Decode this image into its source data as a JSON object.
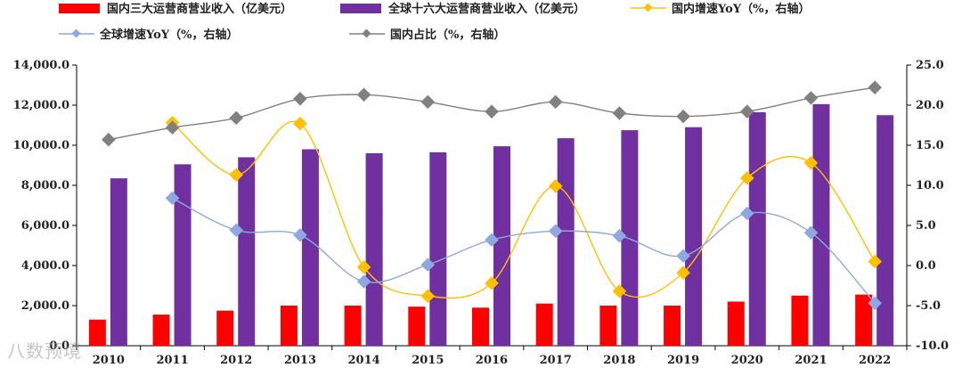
{
  "chart_data": {
    "type": "bar+line",
    "categories": [
      "2010",
      "2011",
      "2012",
      "2013",
      "2014",
      "2015",
      "2016",
      "2017",
      "2018",
      "2019",
      "2020",
      "2021",
      "2022"
    ],
    "bar_series": [
      {
        "name": "国内三大运营商营业收入（亿美元）",
        "color": "#ff0000",
        "values": [
          1300,
          1550,
          1750,
          2000,
          2000,
          1950,
          1900,
          2100,
          2000,
          2000,
          2200,
          2500,
          2550
        ]
      },
      {
        "name": "全球十六大运营商营业收入（亿美元）",
        "color": "#7030a0",
        "values": [
          8350,
          9050,
          9400,
          9800,
          9600,
          9650,
          9950,
          10350,
          10750,
          10900,
          11650,
          12050,
          11500
        ]
      }
    ],
    "line_series": [
      {
        "name": "国内增速YoY（%，右轴）",
        "color": "#ffc000",
        "values": [
          null,
          17.8,
          11.3,
          17.7,
          -0.2,
          -3.8,
          -2.2,
          9.9,
          -3.2,
          -0.9,
          10.9,
          12.8,
          0.5
        ]
      },
      {
        "name": "全球增速YoY（%，右轴）",
        "color": "#8fa8e0",
        "values": [
          null,
          8.4,
          4.4,
          3.8,
          -2.0,
          0.1,
          3.2,
          4.3,
          3.7,
          1.2,
          6.5,
          4.1,
          -4.7
        ]
      },
      {
        "name": "国内占比（%，右轴）",
        "color": "#808080",
        "values": [
          15.7,
          17.2,
          18.4,
          20.8,
          21.3,
          20.4,
          19.2,
          20.4,
          19.0,
          18.6,
          19.2,
          20.9,
          22.2
        ]
      }
    ],
    "y_left": {
      "min": 0,
      "max": 14000,
      "step": 2000,
      "ticks": [
        "0.0",
        "2,000.0",
        "4,000.0",
        "6,000.0",
        "8,000.0",
        "10,000.0",
        "12,000.0",
        "14,000.0"
      ]
    },
    "y_right": {
      "min": -10,
      "max": 25,
      "step": 5,
      "ticks": [
        "-10.0",
        "-5.0",
        "0.0",
        "5.0",
        "10.0",
        "15.0",
        "20.0",
        "25.0"
      ]
    }
  },
  "watermark": "八数预境"
}
